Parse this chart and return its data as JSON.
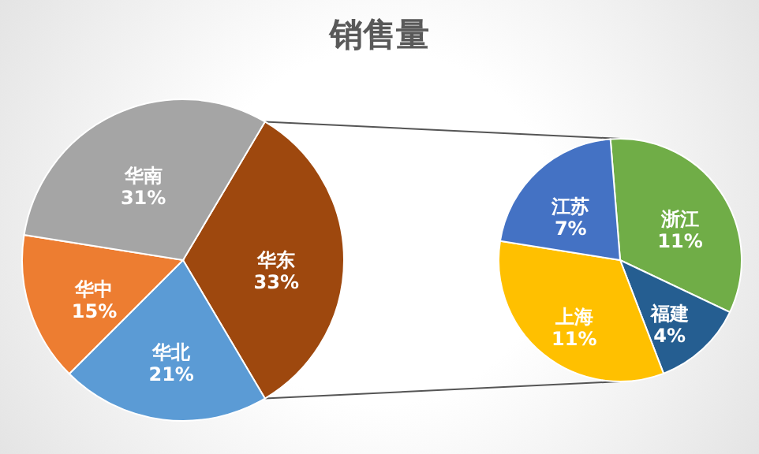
{
  "chart_data": [
    {
      "type": "pie",
      "title": "销售量",
      "categories": [
        "华东",
        "华北",
        "华中",
        "华南"
      ],
      "values": [
        33,
        21,
        15,
        31
      ],
      "colors": [
        "#9e480e",
        "#5b9bd5",
        "#ed7d31",
        "#a5a5a5"
      ],
      "value_labels": [
        "33%",
        "21%",
        "15%",
        "31%"
      ]
    },
    {
      "type": "pie",
      "categories": [
        "浙江",
        "福建",
        "上海",
        "江苏"
      ],
      "values": [
        11,
        4,
        11,
        7
      ],
      "colors": [
        "#70ad47",
        "#255e91",
        "#ffc000",
        "#4472c4"
      ],
      "value_labels": [
        "11%",
        "4%",
        "11%",
        "7%"
      ]
    }
  ]
}
